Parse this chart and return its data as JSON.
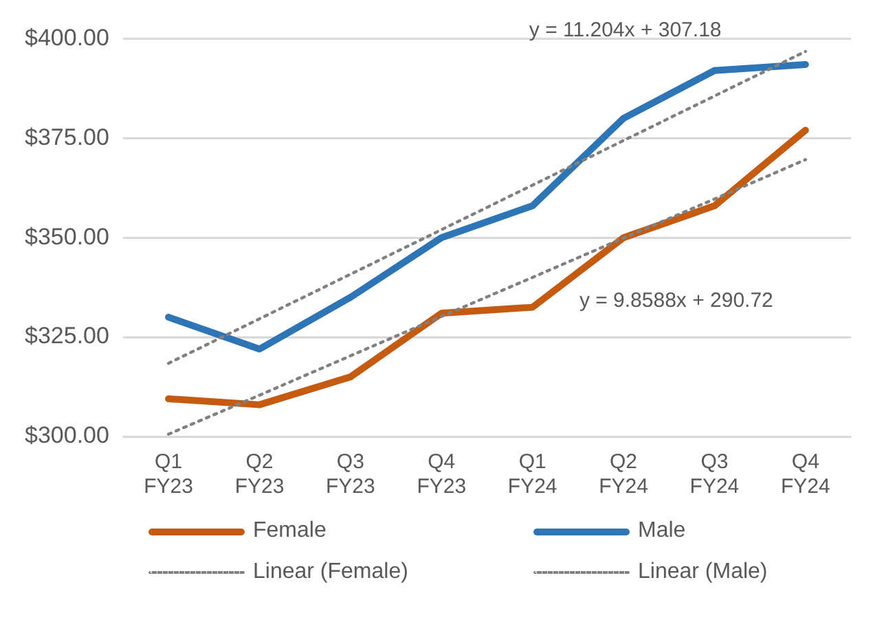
{
  "chart_data": {
    "type": "line",
    "categories": [
      "Q1 FY23",
      "Q2 FY23",
      "Q3 FY23",
      "Q4 FY23",
      "Q1 FY24",
      "Q2 FY24",
      "Q3 FY24",
      "Q4 FY24"
    ],
    "series": [
      {
        "name": "Female",
        "color": "#c55a11",
        "values": [
          309.5,
          308,
          315,
          331,
          332.5,
          350,
          358,
          377
        ]
      },
      {
        "name": "Male",
        "color": "#2e75b6",
        "values": [
          330,
          322,
          335,
          350,
          358,
          380,
          392,
          393.5
        ]
      },
      {
        "name": "Linear (Female)",
        "color": "#808080",
        "line_style": "dotted",
        "values": [
          300.6,
          310.4,
          320.3,
          330.2,
          340.0,
          349.9,
          359.7,
          369.6
        ]
      },
      {
        "name": "Linear (Male)",
        "color": "#808080",
        "line_style": "dotted",
        "values": [
          318.4,
          329.6,
          340.8,
          352.0,
          363.2,
          374.4,
          385.6,
          396.8
        ]
      }
    ],
    "ylim": [
      300,
      400
    ],
    "yticks": [
      {
        "value": 300,
        "label": "$300.00"
      },
      {
        "value": 325,
        "label": "$325.00"
      },
      {
        "value": 350,
        "label": "$350.00"
      },
      {
        "value": 375,
        "label": "$375.00"
      },
      {
        "value": 400,
        "label": "$400.00"
      }
    ],
    "grid": "y",
    "legend": "bottom",
    "marker": "none",
    "line_style": "solid",
    "annotations": [
      "y = 11.204x + 307.18",
      "y = 9.8588x + 290.72"
    ]
  }
}
